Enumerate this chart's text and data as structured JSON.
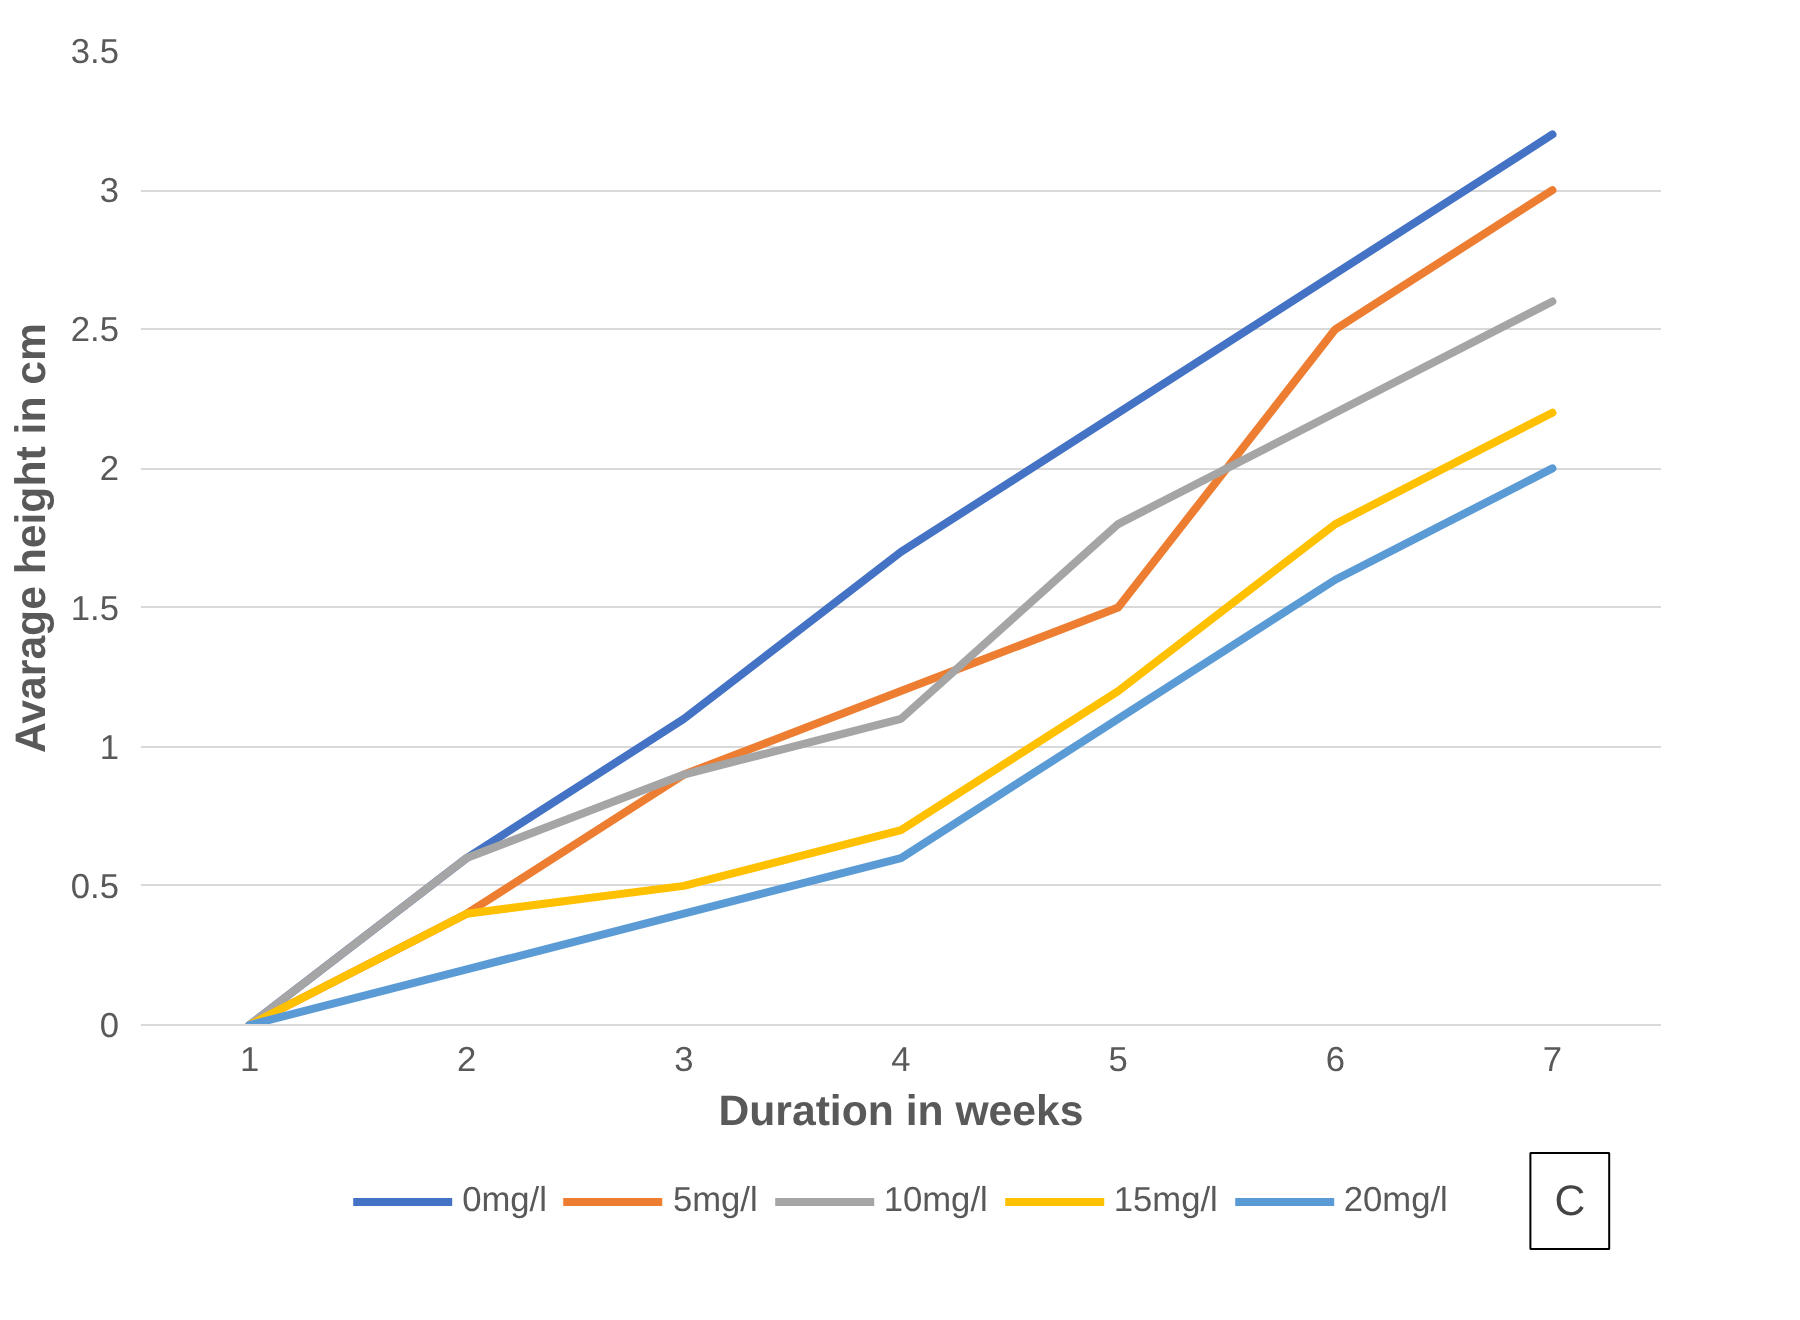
{
  "chart_data": {
    "type": "line",
    "xlabel": "Duration in weeks",
    "ylabel": "Avarage height in cm",
    "categories": [
      "1",
      "2",
      "3",
      "4",
      "5",
      "6",
      "7"
    ],
    "series": [
      {
        "name": "0mg/l",
        "color": "#4472c4",
        "values": [
          0,
          0.6,
          1.1,
          1.7,
          2.2,
          2.7,
          3.2
        ]
      },
      {
        "name": "5mg/l",
        "color": "#ed7d31",
        "values": [
          0,
          0.4,
          0.9,
          1.2,
          1.5,
          2.5,
          3.0
        ]
      },
      {
        "name": "10mg/l",
        "color": "#a5a5a5",
        "values": [
          0,
          0.6,
          0.9,
          1.1,
          1.8,
          2.2,
          2.6
        ]
      },
      {
        "name": "15mg/l",
        "color": "#ffc000",
        "values": [
          0,
          0.4,
          0.5,
          0.7,
          1.2,
          1.8,
          2.2
        ]
      },
      {
        "name": "20mg/l",
        "color": "#5b9bd5",
        "values": [
          0,
          0.2,
          0.4,
          0.6,
          1.1,
          1.6,
          2.0
        ]
      }
    ],
    "ylim": [
      0,
      3.5
    ],
    "yticks": [
      0,
      0.5,
      1,
      1.5,
      2,
      2.5,
      3,
      3.5
    ],
    "grid": "y",
    "legend": "bottom",
    "line_style": "solid",
    "annotations": [
      "C"
    ]
  }
}
